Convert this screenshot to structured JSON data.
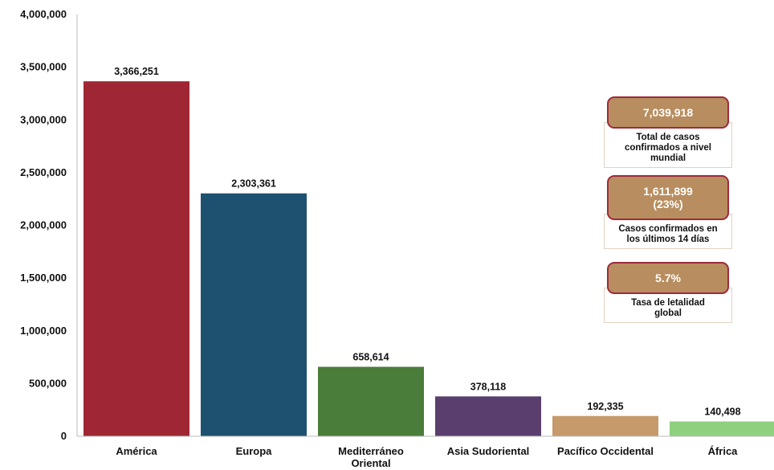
{
  "chart_data": {
    "type": "bar",
    "categories": [
      "América",
      "Europa",
      "Mediterráneo\nOriental",
      "Asia Sudoriental",
      "Pacífico Occidental",
      "África"
    ],
    "values": [
      3366251,
      2303361,
      658614,
      378118,
      192335,
      140498
    ],
    "value_labels": [
      "3,366,251",
      "2,303,361",
      "658,614",
      "378,118",
      "192,335",
      "140,498"
    ],
    "colors": [
      "#9e2733",
      "#1e5070",
      "#4a7c3a",
      "#5a3f6e",
      "#c69a6b",
      "#8fd07f"
    ],
    "ylim": [
      0,
      4000000
    ],
    "yticks": [
      0,
      500000,
      1000000,
      1500000,
      2000000,
      2500000,
      3000000,
      3500000,
      4000000
    ],
    "ytick_labels": [
      "0",
      "500,000",
      "1,000,000",
      "1,500,000",
      "2,000,000",
      "2,500,000",
      "3,000,000",
      "3,500,000",
      "4,000,000"
    ],
    "title": "",
    "xlabel": "",
    "ylabel": "",
    "grid": false,
    "legend": "none"
  },
  "stats": [
    {
      "value": "7,039,918",
      "description": "Total de casos confirmados a nivel mundial"
    },
    {
      "value": "1,611,899\n(23%)",
      "description": "Casos confirmados en los últimos 14 días"
    },
    {
      "value": "5.7%",
      "description": "Tasa de letalidad global"
    }
  ]
}
